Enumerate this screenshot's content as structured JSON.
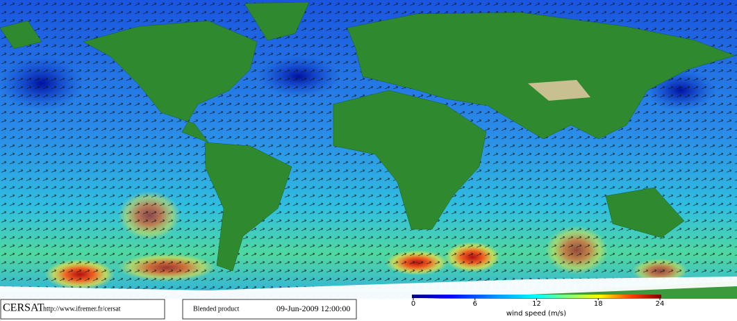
{
  "logo": {
    "name": "CERSAT",
    "url": "http://www.ifremer.fr/cersat"
  },
  "product": {
    "name": "Blended product",
    "date": "09-Jun-2009 12:00:00"
  },
  "colorbar": {
    "label": "wind speed (m/s)",
    "lim": [
      0,
      24
    ],
    "ticks": [
      0,
      6,
      12,
      18,
      24
    ]
  }
}
